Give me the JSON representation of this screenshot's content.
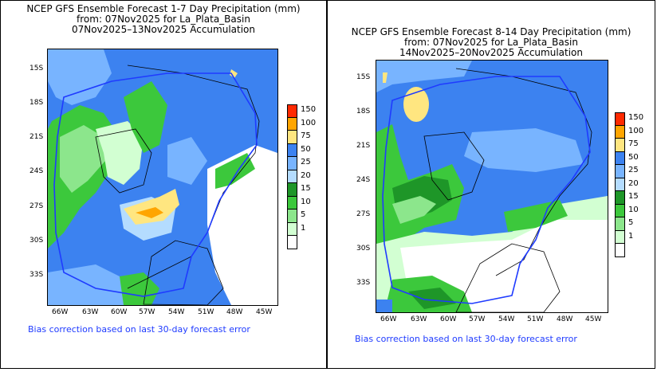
{
  "panels": [
    {
      "id": "week1",
      "title_lines": [
        "NCEP GFS Ensemble Forecast 1-7 Day Precipitation (mm)",
        "from: 07Nov2025   for La_Plata_Basin",
        "07Nov2025–13Nov2025 Accumulation"
      ],
      "footer": "Bias correction based on last 30-day forecast error"
    },
    {
      "id": "week2",
      "title_lines": [
        "NCEP GFS Ensemble Forecast 8-14 Day Precipitation (mm)",
        "from: 07Nov2025   for La_Plata_Basin",
        "14Nov2025–20Nov2025 Accumulation"
      ],
      "footer": "Bias correction based on last 30-day forecast error"
    }
  ],
  "axes": {
    "lat_ticks": [
      "15S",
      "18S",
      "21S",
      "24S",
      "27S",
      "30S",
      "33S"
    ],
    "lon_ticks": [
      "66W",
      "63W",
      "60W",
      "57W",
      "54W",
      "51W",
      "48W",
      "45W"
    ]
  },
  "legend": {
    "levels": [
      {
        "label": "150",
        "color": "#ff2a00"
      },
      {
        "label": "100",
        "color": "#ffa500"
      },
      {
        "label": "75",
        "color": "#ffe680"
      },
      {
        "label": "50",
        "color": "#3c82f0"
      },
      {
        "label": "25",
        "color": "#78b4ff"
      },
      {
        "label": "20",
        "color": "#b4dcff"
      },
      {
        "label": "15",
        "color": "#1e9628"
      },
      {
        "label": "10",
        "color": "#3cc83c"
      },
      {
        "label": "5",
        "color": "#8ce68c"
      },
      {
        "label": "1",
        "color": "#d2ffd2"
      },
      {
        "label": "",
        "color": "#ffffff"
      }
    ]
  }
}
